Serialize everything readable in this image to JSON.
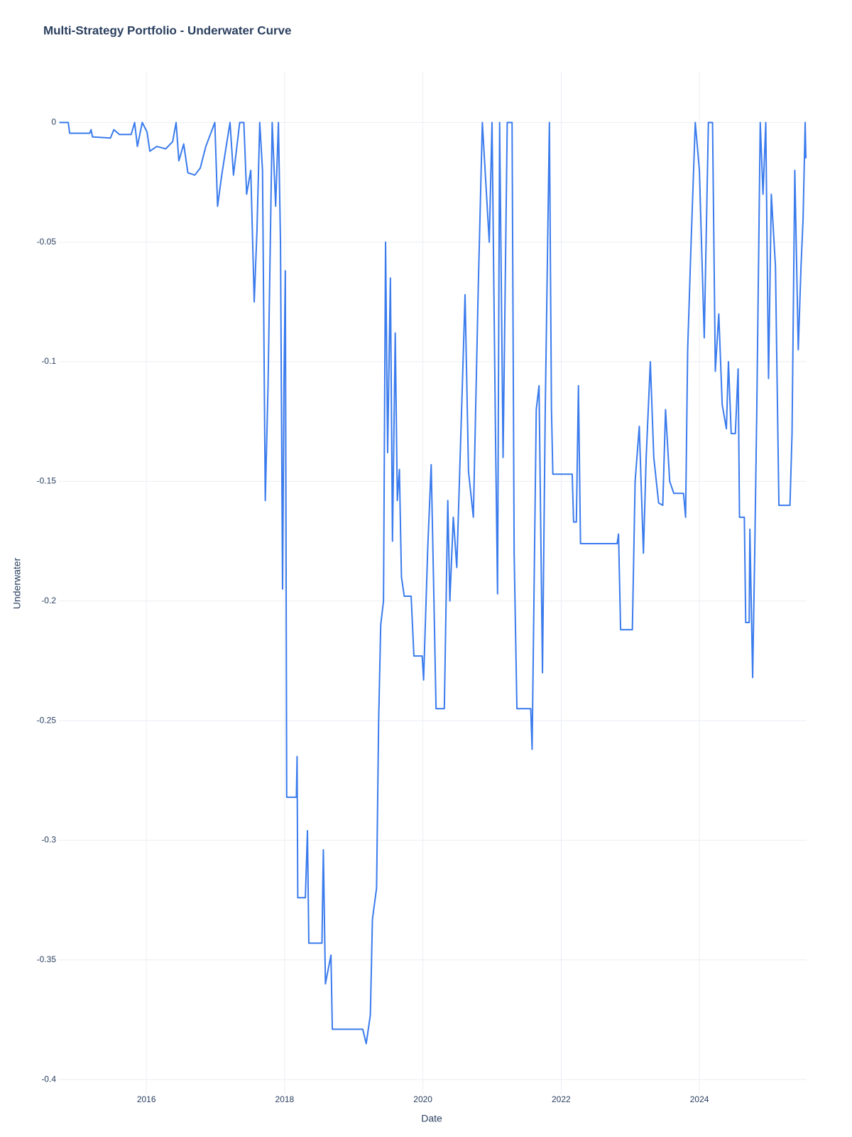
{
  "chart_data": {
    "type": "line",
    "title": "Multi-Strategy Portfolio - Underwater Curve",
    "xlabel": "Date",
    "ylabel": "Underwater",
    "color": "#3a7bed",
    "grid": true,
    "xlim": [
      2014.735,
      2025.55
    ],
    "xticks": [
      2016,
      2018,
      2020,
      2022,
      2024
    ],
    "ylim": [
      -0.4065,
      0.0212
    ],
    "yticks": [
      0,
      -0.05,
      -0.1,
      -0.15,
      -0.2,
      -0.25,
      -0.3,
      -0.35,
      -0.4
    ],
    "x": [
      2014.74,
      2014.87,
      2014.89,
      2015.18,
      2015.2,
      2015.22,
      2015.48,
      2015.53,
      2015.61,
      2015.78,
      2015.83,
      2015.87,
      2015.94,
      2016.01,
      2016.05,
      2016.15,
      2016.28,
      2016.38,
      2016.43,
      2016.47,
      2016.54,
      2016.6,
      2016.7,
      2016.78,
      2016.86,
      2016.99,
      2017.03,
      2017.09,
      2017.16,
      2017.21,
      2017.26,
      2017.35,
      2017.41,
      2017.45,
      2017.51,
      2017.56,
      2017.6,
      2017.64,
      2017.68,
      2017.72,
      2017.76,
      2017.82,
      2017.87,
      2017.91,
      2017.94,
      2017.97,
      2017.99,
      2018.01,
      2018.03,
      2018.17,
      2018.18,
      2018.19,
      2018.3,
      2018.33,
      2018.35,
      2018.54,
      2018.56,
      2018.59,
      2018.67,
      2018.69,
      2019.13,
      2019.18,
      2019.24,
      2019.27,
      2019.33,
      2019.36,
      2019.39,
      2019.43,
      2019.46,
      2019.49,
      2019.53,
      2019.56,
      2019.6,
      2019.63,
      2019.66,
      2019.69,
      2019.73,
      2019.83,
      2019.87,
      2019.99,
      2020.01,
      2020.07,
      2020.12,
      2020.16,
      2020.19,
      2020.31,
      2020.33,
      2020.36,
      2020.39,
      2020.44,
      2020.49,
      2020.56,
      2020.61,
      2020.66,
      2020.73,
      2020.8,
      2020.86,
      2020.9,
      2020.96,
      2021.0,
      2021.05,
      2021.08,
      2021.11,
      2021.16,
      2021.22,
      2021.29,
      2021.32,
      2021.36,
      2021.56,
      2021.58,
      2021.64,
      2021.68,
      2021.73,
      2021.77,
      2021.8,
      2021.83,
      2021.86,
      2021.88,
      2022.16,
      2022.18,
      2022.22,
      2022.25,
      2022.28,
      2022.81,
      2022.83,
      2022.86,
      2023.03,
      2023.07,
      2023.13,
      2023.19,
      2023.23,
      2023.29,
      2023.34,
      2023.41,
      2023.47,
      2023.51,
      2023.57,
      2023.63,
      2023.77,
      2023.8,
      2023.83,
      2023.88,
      2023.94,
      2024.0,
      2024.07,
      2024.13,
      2024.19,
      2024.23,
      2024.28,
      2024.33,
      2024.39,
      2024.42,
      2024.46,
      2024.52,
      2024.56,
      2024.58,
      2024.65,
      2024.67,
      2024.72,
      2024.73,
      2024.77,
      2024.8,
      2024.83,
      2024.88,
      2024.92,
      2024.96,
      2025.0,
      2025.04,
      2025.1,
      2025.15,
      2025.31,
      2025.34,
      2025.38,
      2025.43,
      2025.47,
      2025.5,
      2025.53,
      2025.54
    ],
    "values": [
      0,
      0,
      -0.0045,
      -0.0045,
      -0.003,
      -0.006,
      -0.0065,
      -0.003,
      -0.005,
      -0.005,
      0,
      -0.01,
      0,
      -0.004,
      -0.012,
      -0.01,
      -0.011,
      -0.008,
      0,
      -0.016,
      -0.009,
      -0.021,
      -0.022,
      -0.019,
      -0.01,
      0,
      -0.035,
      -0.022,
      -0.009,
      0,
      -0.022,
      0,
      0,
      -0.03,
      -0.02,
      -0.075,
      -0.045,
      0,
      -0.02,
      -0.158,
      -0.11,
      0,
      -0.035,
      0,
      -0.05,
      -0.195,
      -0.11,
      -0.062,
      -0.282,
      -0.282,
      -0.265,
      -0.324,
      -0.324,
      -0.296,
      -0.343,
      -0.343,
      -0.304,
      -0.36,
      -0.348,
      -0.379,
      -0.379,
      -0.385,
      -0.373,
      -0.333,
      -0.32,
      -0.25,
      -0.21,
      -0.2,
      -0.05,
      -0.138,
      -0.065,
      -0.175,
      -0.088,
      -0.158,
      -0.145,
      -0.19,
      -0.198,
      -0.198,
      -0.223,
      -0.223,
      -0.233,
      -0.178,
      -0.143,
      -0.2,
      -0.245,
      -0.245,
      -0.21,
      -0.158,
      -0.2,
      -0.165,
      -0.186,
      -0.12,
      -0.072,
      -0.146,
      -0.165,
      -0.07,
      0,
      -0.02,
      -0.05,
      0,
      -0.13,
      -0.197,
      0,
      -0.14,
      0,
      0,
      -0.18,
      -0.245,
      -0.245,
      -0.262,
      -0.12,
      -0.11,
      -0.23,
      -0.12,
      -0.06,
      0,
      -0.12,
      -0.147,
      -0.147,
      -0.167,
      -0.167,
      -0.11,
      -0.176,
      -0.176,
      -0.172,
      -0.212,
      -0.212,
      -0.15,
      -0.127,
      -0.18,
      -0.14,
      -0.1,
      -0.14,
      -0.159,
      -0.16,
      -0.12,
      -0.15,
      -0.155,
      -0.155,
      -0.165,
      -0.095,
      -0.05,
      0,
      -0.02,
      -0.09,
      0,
      0,
      -0.104,
      -0.08,
      -0.118,
      -0.128,
      -0.1,
      -0.13,
      -0.13,
      -0.103,
      -0.165,
      -0.165,
      -0.209,
      -0.209,
      -0.17,
      -0.232,
      -0.18,
      -0.12,
      0,
      -0.03,
      0,
      -0.107,
      -0.03,
      -0.06,
      -0.16,
      -0.16,
      -0.13,
      -0.02,
      -0.095,
      -0.06,
      -0.04,
      0,
      -0.015
    ]
  }
}
